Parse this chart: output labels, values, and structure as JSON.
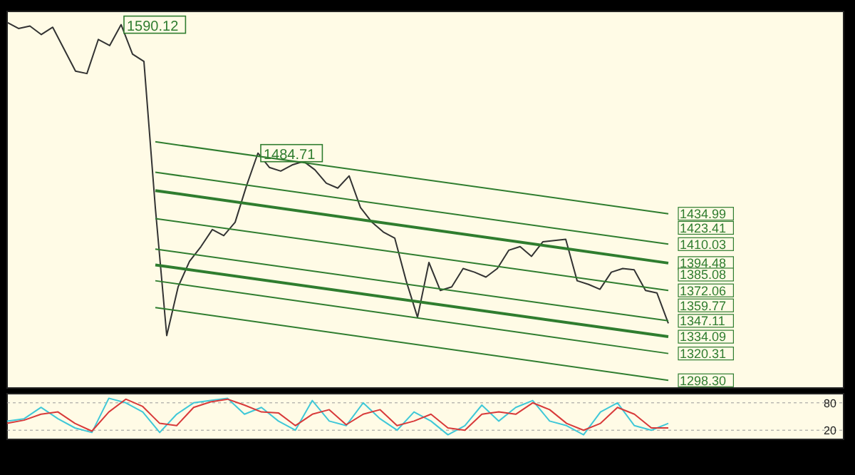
{
  "chart_data": [
    {
      "type": "line",
      "categories": [
        null,
        null,
        null,
        null,
        null,
        null,
        null,
        null,
        null,
        null,
        null,
        null,
        null,
        null,
        null,
        null,
        null,
        null,
        null,
        null,
        null,
        null,
        null,
        null,
        null,
        null,
        null,
        null,
        null,
        null,
        null,
        null,
        null,
        null,
        null,
        null,
        null,
        null,
        null,
        null,
        null,
        null,
        null,
        null,
        null,
        null,
        null,
        null,
        null,
        null,
        null,
        null,
        null,
        null,
        null,
        null,
        null,
        null,
        null
      ],
      "ylim": [
        1292,
        1601
      ],
      "yticks": [
        1434.99,
        1423.41,
        1410.03,
        1394.48,
        1385.08,
        1372.06,
        1359.77,
        1347.11,
        1334.09,
        1320.31,
        {
          "value": 1298.3,
          "label": "1298.30"
        }
      ],
      "tick_labels": "y",
      "marker": "none",
      "series": [
        {
          "color": "#333333",
          "values": [
            1592,
            1587,
            1589,
            1582,
            1588,
            1570,
            1552,
            1550,
            1578,
            1573,
            1590.12,
            1566,
            1560,
            1440,
            1335,
            1375,
            1396,
            1408,
            1422,
            1417,
            1428,
            1458,
            1484.71,
            1473,
            1470,
            1475,
            1478,
            1471,
            1460,
            1456,
            1466,
            1440,
            1428,
            1420,
            1415,
            1380,
            1350,
            1395,
            1372,
            1375,
            1390,
            1387,
            1383,
            1390,
            1405,
            1408,
            1400,
            1412,
            1413,
            1414,
            1380,
            1377,
            1373,
            1387,
            1390,
            1389,
            1372,
            1370,
            1345
          ],
          "value_labels": [
            null,
            null,
            null,
            null,
            null,
            null,
            null,
            null,
            null,
            null,
            "1590.12",
            null,
            null,
            null,
            null,
            null,
            null,
            null,
            null,
            null,
            null,
            null,
            "1484.71",
            null,
            null,
            null,
            null,
            null,
            null,
            null,
            null,
            null,
            null,
            null,
            null,
            null,
            null,
            null,
            null,
            null,
            null,
            null,
            null,
            null,
            null,
            null,
            null,
            null,
            null,
            null,
            null,
            null,
            null,
            null,
            null,
            null,
            null,
            null,
            null
          ]
        },
        {
          "color": "#2f7d2f",
          "values": [
            null,
            null,
            null,
            null,
            null,
            null,
            null,
            null,
            null,
            null,
            null,
            null,
            null,
            1494,
            null,
            null,
            null,
            null,
            null,
            null,
            null,
            null,
            null,
            null,
            null,
            null,
            null,
            null,
            null,
            null,
            null,
            null,
            null,
            null,
            null,
            null,
            null,
            null,
            null,
            null,
            null,
            null,
            null,
            null,
            null,
            null,
            null,
            null,
            null,
            null,
            null,
            null,
            null,
            null,
            null,
            null,
            null,
            null,
            1434.99
          ]
        },
        {
          "color": "#2f7d2f",
          "values": [
            null,
            null,
            null,
            null,
            null,
            null,
            null,
            null,
            null,
            null,
            null,
            null,
            null,
            1469,
            null,
            null,
            null,
            null,
            null,
            null,
            null,
            null,
            null,
            null,
            null,
            null,
            null,
            null,
            null,
            null,
            null,
            null,
            null,
            null,
            null,
            null,
            null,
            null,
            null,
            null,
            null,
            null,
            null,
            null,
            null,
            null,
            null,
            null,
            null,
            null,
            null,
            null,
            null,
            null,
            null,
            null,
            null,
            null,
            1410.03
          ]
        },
        {
          "color": "#2f7d2f",
          "values": [
            null,
            null,
            null,
            null,
            null,
            null,
            null,
            null,
            null,
            null,
            null,
            null,
            null,
            1454,
            null,
            null,
            null,
            null,
            null,
            null,
            null,
            null,
            null,
            null,
            null,
            null,
            null,
            null,
            null,
            null,
            null,
            null,
            null,
            null,
            null,
            null,
            null,
            null,
            null,
            null,
            null,
            null,
            null,
            null,
            null,
            null,
            null,
            null,
            null,
            null,
            null,
            null,
            null,
            null,
            null,
            null,
            null,
            null,
            1394.48
          ]
        },
        {
          "color": "#2f7d2f",
          "values": [
            null,
            null,
            null,
            null,
            null,
            null,
            null,
            null,
            null,
            null,
            null,
            null,
            null,
            1431,
            null,
            null,
            null,
            null,
            null,
            null,
            null,
            null,
            null,
            null,
            null,
            null,
            null,
            null,
            null,
            null,
            null,
            null,
            null,
            null,
            null,
            null,
            null,
            null,
            null,
            null,
            null,
            null,
            null,
            null,
            null,
            null,
            null,
            null,
            null,
            null,
            null,
            null,
            null,
            null,
            null,
            null,
            null,
            null,
            1372.06
          ]
        },
        {
          "color": "#2f7d2f",
          "values": [
            null,
            null,
            null,
            null,
            null,
            null,
            null,
            null,
            null,
            null,
            null,
            null,
            null,
            1406,
            null,
            null,
            null,
            null,
            null,
            null,
            null,
            null,
            null,
            null,
            null,
            null,
            null,
            null,
            null,
            null,
            null,
            null,
            null,
            null,
            null,
            null,
            null,
            null,
            null,
            null,
            null,
            null,
            null,
            null,
            null,
            null,
            null,
            null,
            null,
            null,
            null,
            null,
            null,
            null,
            null,
            null,
            null,
            null,
            1347.11
          ]
        },
        {
          "color": "#2f7d2f",
          "values": [
            null,
            null,
            null,
            null,
            null,
            null,
            null,
            null,
            null,
            null,
            null,
            null,
            null,
            1393,
            null,
            null,
            null,
            null,
            null,
            null,
            null,
            null,
            null,
            null,
            null,
            null,
            null,
            null,
            null,
            null,
            null,
            null,
            null,
            null,
            null,
            null,
            null,
            null,
            null,
            null,
            null,
            null,
            null,
            null,
            null,
            null,
            null,
            null,
            null,
            null,
            null,
            null,
            null,
            null,
            null,
            null,
            null,
            null,
            1334.09
          ]
        },
        {
          "color": "#2f7d2f",
          "values": [
            null,
            null,
            null,
            null,
            null,
            null,
            null,
            null,
            null,
            null,
            null,
            null,
            null,
            1380,
            null,
            null,
            null,
            null,
            null,
            null,
            null,
            null,
            null,
            null,
            null,
            null,
            null,
            null,
            null,
            null,
            null,
            null,
            null,
            null,
            null,
            null,
            null,
            null,
            null,
            null,
            null,
            null,
            null,
            null,
            null,
            null,
            null,
            null,
            null,
            null,
            null,
            null,
            null,
            null,
            null,
            null,
            null,
            null,
            1320.31
          ]
        },
        {
          "color": "#2f7d2f",
          "values": [
            null,
            null,
            null,
            null,
            null,
            null,
            null,
            null,
            null,
            null,
            null,
            null,
            null,
            1358,
            null,
            null,
            null,
            null,
            null,
            null,
            null,
            null,
            null,
            null,
            null,
            null,
            null,
            null,
            null,
            null,
            null,
            null,
            null,
            null,
            null,
            null,
            null,
            null,
            null,
            null,
            null,
            null,
            null,
            null,
            null,
            null,
            null,
            null,
            null,
            null,
            null,
            null,
            null,
            null,
            null,
            null,
            null,
            null,
            1298.3
          ]
        }
      ]
    },
    {
      "type": "line",
      "categories": [
        null,
        null,
        null,
        null,
        null,
        null,
        null,
        null,
        null,
        null,
        null,
        null,
        null,
        null,
        null,
        null,
        null,
        null,
        null,
        null,
        null,
        null,
        null,
        null,
        null,
        null,
        null,
        null,
        null,
        null,
        null,
        null,
        null,
        null,
        null,
        null,
        null,
        null,
        null,
        null
      ],
      "ylim": [
        0,
        100
      ],
      "yticks": [
        20,
        80
      ],
      "tick_labels": "y",
      "marker": "none",
      "series": [
        {
          "color": "#3fc8d8",
          "values": [
            40,
            45,
            70,
            45,
            25,
            15,
            90,
            80,
            60,
            15,
            55,
            80,
            85,
            90,
            55,
            70,
            40,
            20,
            85,
            40,
            30,
            80,
            45,
            20,
            60,
            40,
            10,
            30,
            75,
            40,
            70,
            85,
            40,
            30,
            10,
            60,
            80,
            30,
            20,
            35
          ]
        },
        {
          "color": "#d83a3a",
          "values": [
            35,
            42,
            55,
            60,
            35,
            18,
            60,
            88,
            72,
            35,
            30,
            70,
            82,
            88,
            75,
            60,
            58,
            30,
            55,
            65,
            32,
            55,
            65,
            30,
            40,
            55,
            25,
            20,
            55,
            60,
            55,
            80,
            65,
            35,
            20,
            35,
            70,
            55,
            25,
            25
          ]
        }
      ]
    }
  ]
}
